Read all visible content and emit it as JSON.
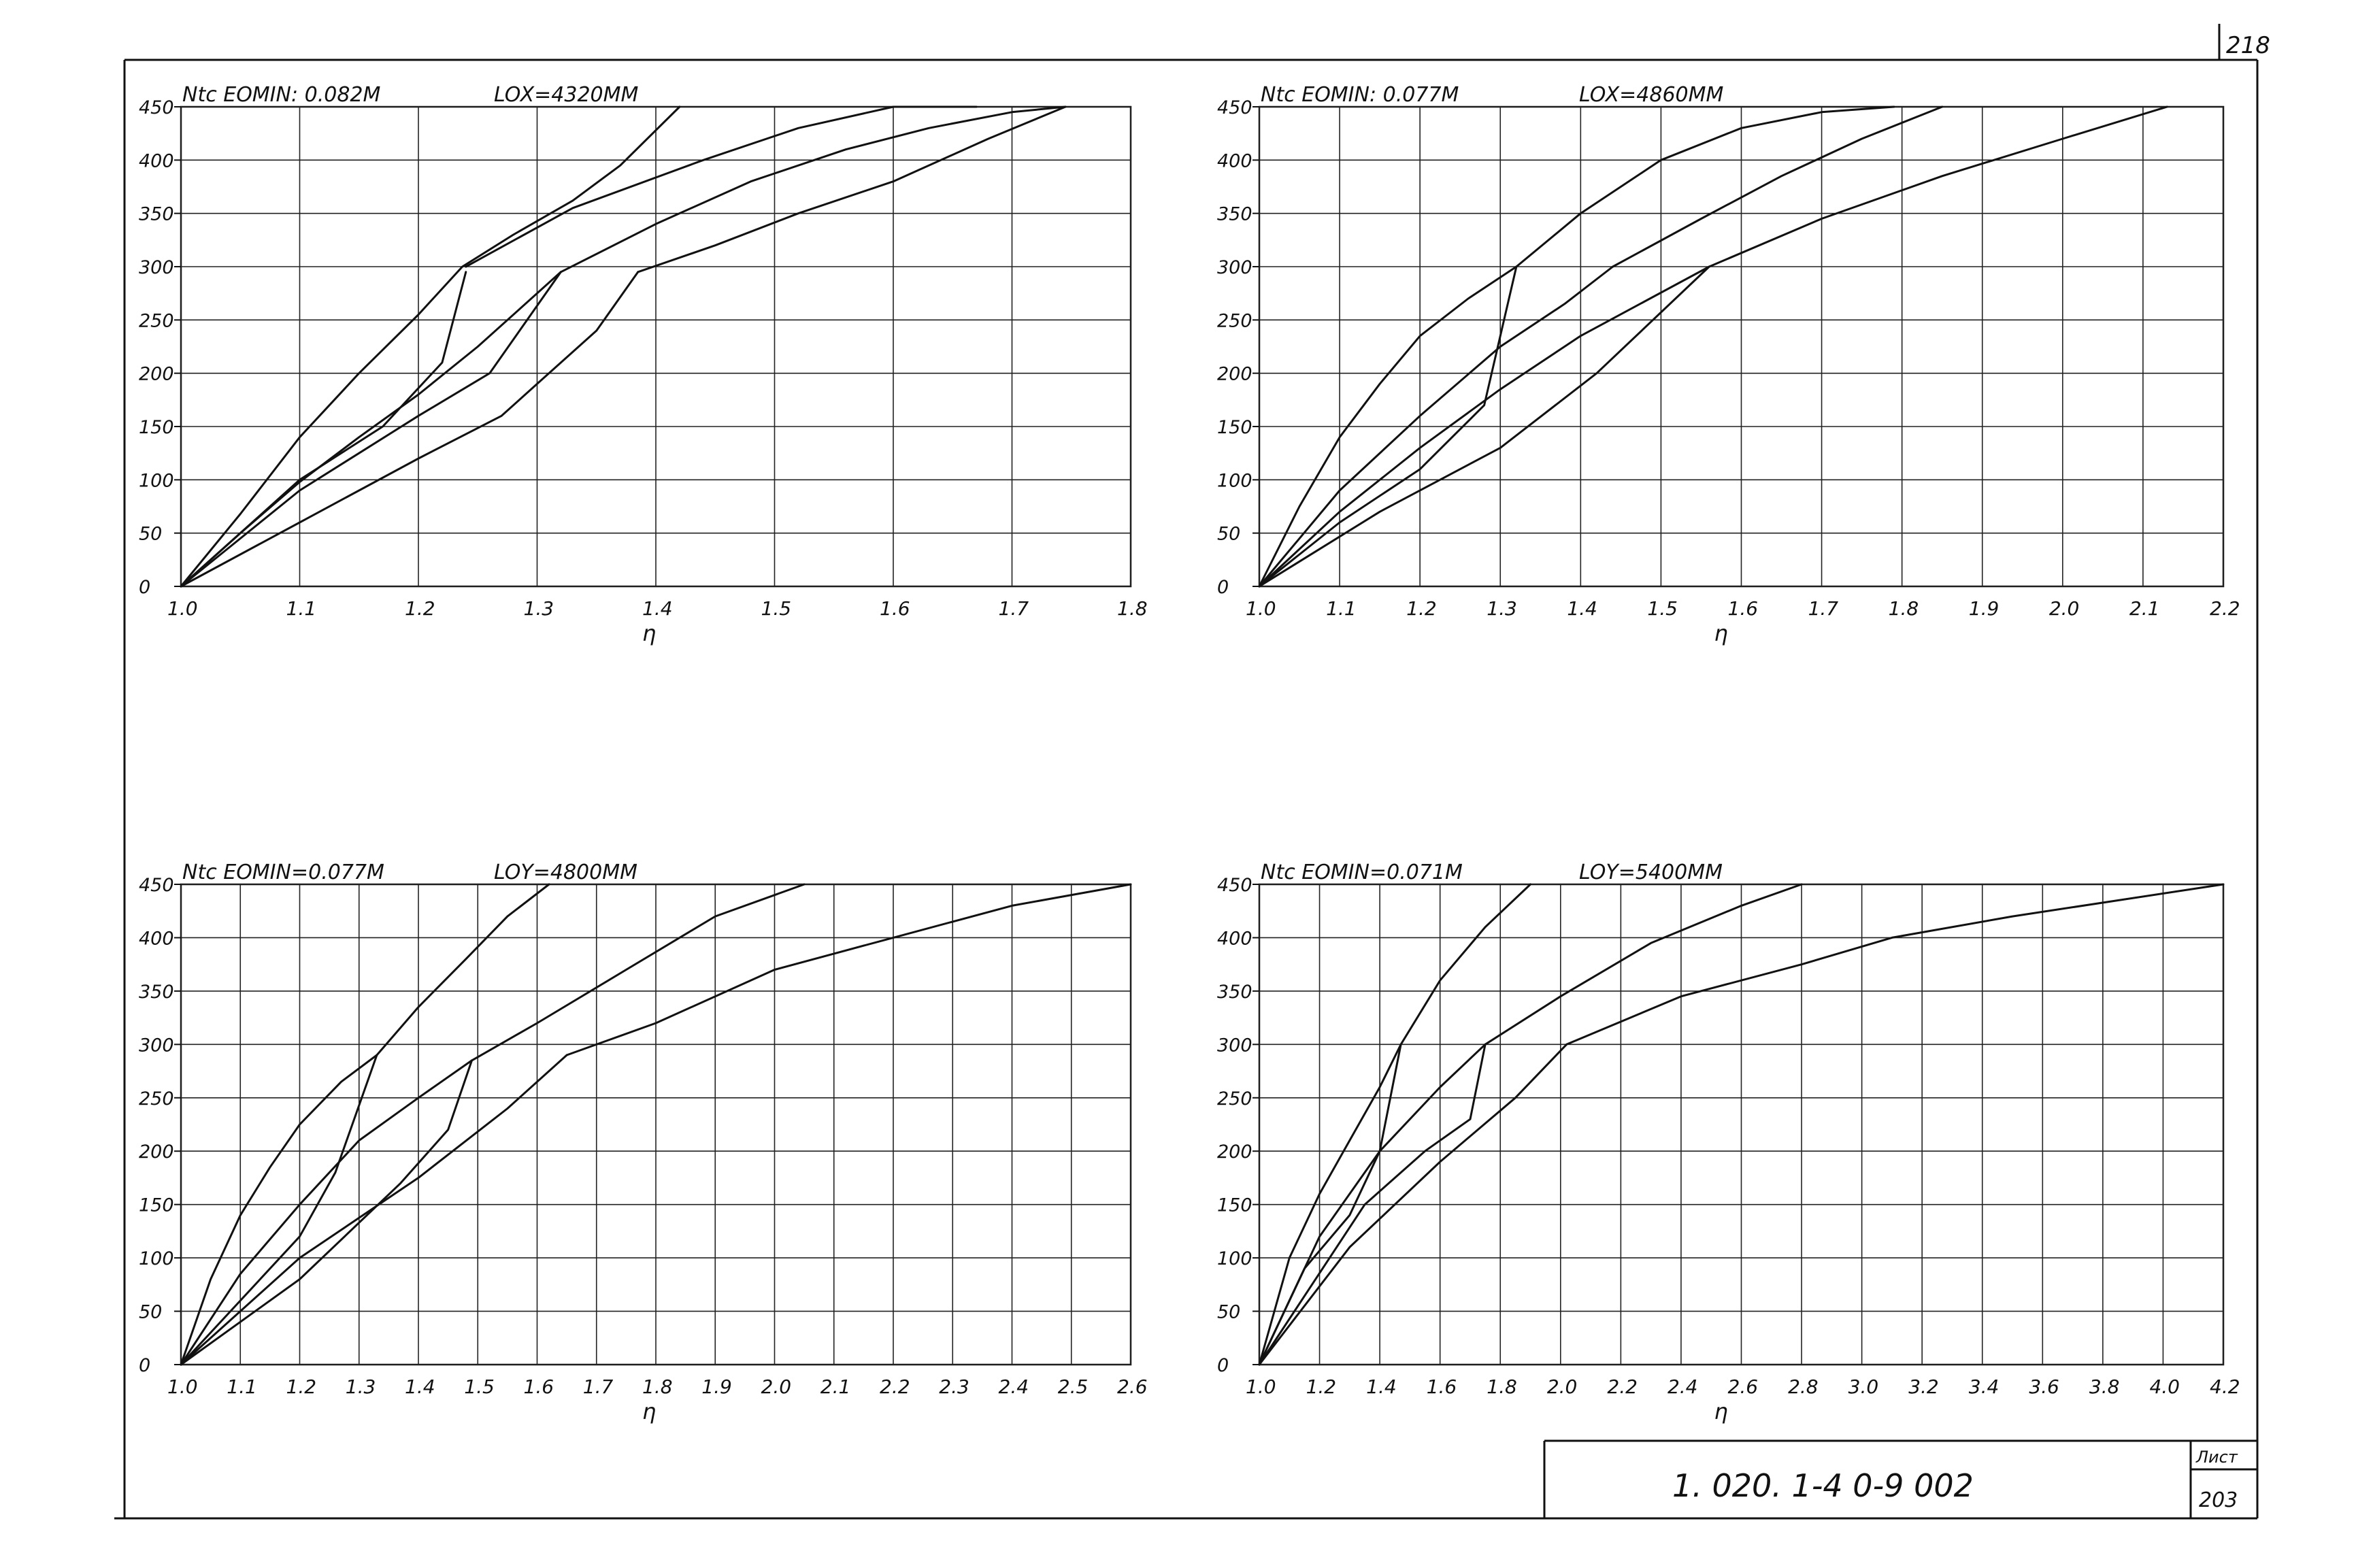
{
  "sheet": {
    "corner": "218",
    "code": "1. 020. 1-4   0-9    002",
    "list_label": "Лист",
    "list_num": "203"
  },
  "chart_data": [
    {
      "type": "line",
      "title": "Ntc  EOMIN: 0.082M",
      "subtitle": "LOX=4320MM",
      "xlabel": "η",
      "ylabel": "",
      "xlim": [
        1.0,
        1.8
      ],
      "ylim": [
        0,
        450
      ],
      "xticks": [
        "1.0",
        "1.1",
        "1.2",
        "1.3",
        "1.4",
        "1.5",
        "1.6",
        "1.7",
        "1.8"
      ],
      "yticks": [
        "0",
        "50",
        "100",
        "150",
        "200",
        "250",
        "300",
        "350",
        "400",
        "450"
      ],
      "grid": true,
      "series": [
        {
          "x": [
            1.0,
            1.05,
            1.1,
            1.15,
            1.2,
            1.237,
            1.28,
            1.33,
            1.37,
            1.42
          ],
          "y": [
            0,
            68,
            140,
            200,
            255,
            300,
            330,
            362,
            395,
            450
          ]
        },
        {
          "x": [
            1.24,
            1.33,
            1.44,
            1.52,
            1.6,
            1.67
          ],
          "y": [
            300,
            355,
            400,
            430,
            450,
            450
          ]
        },
        {
          "x": [
            1.0,
            1.05,
            1.1,
            1.15,
            1.2,
            1.25,
            1.32
          ],
          "y": [
            0,
            50,
            98,
            140,
            180,
            225,
            295
          ]
        },
        {
          "x": [
            1.0,
            1.05,
            1.1,
            1.15,
            1.2,
            1.26,
            1.32
          ],
          "y": [
            0,
            45,
            90,
            125,
            160,
            200,
            295
          ]
        },
        {
          "x": [
            1.32,
            1.4,
            1.48,
            1.56,
            1.63,
            1.7,
            1.745
          ],
          "y": [
            295,
            340,
            380,
            410,
            430,
            445,
            450
          ]
        },
        {
          "x": [
            1.0,
            1.1,
            1.2,
            1.27,
            1.3,
            1.35,
            1.385
          ],
          "y": [
            0,
            60,
            120,
            160,
            190,
            240,
            295
          ]
        },
        {
          "x": [
            1.385,
            1.45,
            1.52,
            1.6,
            1.68,
            1.745
          ],
          "y": [
            295,
            320,
            350,
            380,
            420,
            450
          ]
        },
        {
          "x": [
            1.0,
            1.1,
            1.17,
            1.22,
            1.24
          ],
          "y": [
            0,
            100,
            150,
            210,
            295
          ]
        }
      ]
    },
    {
      "type": "line",
      "title": "Ntc  EOMIN: 0.077M",
      "subtitle": "LOX=4860MM",
      "xlabel": "η",
      "ylabel": "",
      "xlim": [
        1.0,
        2.2
      ],
      "ylim": [
        0,
        450
      ],
      "xticks": [
        "1.0",
        "1.1",
        "1.2",
        "1.3",
        "1.4",
        "1.5",
        "1.6",
        "1.7",
        "1.8",
        "1.9",
        "2.0",
        "2.1",
        "2.2"
      ],
      "yticks": [
        "0",
        "50",
        "100",
        "150",
        "200",
        "250",
        "300",
        "350",
        "400",
        "450"
      ],
      "grid": true,
      "series": [
        {
          "x": [
            1.0,
            1.05,
            1.1,
            1.15,
            1.2,
            1.26,
            1.32
          ],
          "y": [
            0,
            75,
            140,
            190,
            235,
            270,
            300
          ]
        },
        {
          "x": [
            1.32,
            1.4,
            1.5,
            1.6,
            1.7,
            1.79
          ],
          "y": [
            300,
            350,
            400,
            430,
            445,
            450
          ]
        },
        {
          "x": [
            1.0,
            1.1,
            1.2,
            1.3,
            1.38,
            1.44
          ],
          "y": [
            0,
            90,
            160,
            225,
            265,
            300
          ]
        },
        {
          "x": [
            1.44,
            1.55,
            1.65,
            1.75,
            1.85
          ],
          "y": [
            300,
            345,
            385,
            420,
            450
          ]
        },
        {
          "x": [
            1.0,
            1.1,
            1.2,
            1.3,
            1.4,
            1.56
          ],
          "y": [
            0,
            70,
            130,
            185,
            235,
            300
          ]
        },
        {
          "x": [
            1.56,
            1.7,
            1.85,
            2.0,
            2.13
          ],
          "y": [
            300,
            345,
            385,
            420,
            450
          ]
        },
        {
          "x": [
            1.0,
            1.1,
            1.2,
            1.28,
            1.32
          ],
          "y": [
            0,
            60,
            110,
            170,
            300
          ]
        },
        {
          "x": [
            1.0,
            1.15,
            1.3,
            1.42,
            1.56
          ],
          "y": [
            0,
            70,
            130,
            200,
            300
          ]
        }
      ]
    },
    {
      "type": "line",
      "title": "Ntc  EOMIN=0.077M",
      "subtitle": "LOY=4800MM",
      "xlabel": "η",
      "ylabel": "",
      "xlim": [
        1.0,
        2.6
      ],
      "ylim": [
        0,
        450
      ],
      "xticks": [
        "1.0",
        "1.1",
        "1.2",
        "1.3",
        "1.4",
        "1.5",
        "1.6",
        "1.7",
        "1.8",
        "1.9",
        "2.0",
        "2.1",
        "2.2",
        "2.3",
        "2.4",
        "2.5",
        "2.6"
      ],
      "yticks": [
        "0",
        "50",
        "100",
        "150",
        "200",
        "250",
        "300",
        "350",
        "400",
        "450"
      ],
      "grid": true,
      "series": [
        {
          "x": [
            1.0,
            1.05,
            1.1,
            1.15,
            1.2,
            1.27,
            1.33
          ],
          "y": [
            0,
            80,
            140,
            185,
            225,
            265,
            290
          ]
        },
        {
          "x": [
            1.33,
            1.4,
            1.48,
            1.55,
            1.62
          ],
          "y": [
            290,
            335,
            380,
            420,
            450
          ]
        },
        {
          "x": [
            1.0,
            1.1,
            1.2,
            1.3,
            1.4,
            1.49
          ],
          "y": [
            0,
            85,
            150,
            210,
            250,
            285
          ]
        },
        {
          "x": [
            1.49,
            1.6,
            1.75,
            1.9,
            2.05
          ],
          "y": [
            285,
            320,
            370,
            420,
            450
          ]
        },
        {
          "x": [
            1.0,
            1.2,
            1.4,
            1.55,
            1.65
          ],
          "y": [
            0,
            100,
            175,
            240,
            290
          ]
        },
        {
          "x": [
            1.65,
            1.8,
            2.0,
            2.2,
            2.4,
            2.6
          ],
          "y": [
            290,
            320,
            370,
            400,
            430,
            450
          ]
        },
        {
          "x": [
            1.0,
            1.1,
            1.2,
            1.26,
            1.33
          ],
          "y": [
            0,
            60,
            120,
            180,
            290
          ]
        },
        {
          "x": [
            1.0,
            1.2,
            1.37,
            1.45,
            1.49
          ],
          "y": [
            0,
            80,
            170,
            220,
            285
          ]
        }
      ]
    },
    {
      "type": "line",
      "title": "Ntc  EOMIN=0.071M",
      "subtitle": "LOY=5400MM",
      "xlabel": "η",
      "ylabel": "",
      "xlim": [
        1.0,
        4.2
      ],
      "ylim": [
        0,
        450
      ],
      "xticks": [
        "1.0",
        "1.2",
        "1.4",
        "1.6",
        "1.8",
        "2.0",
        "2.2",
        "2.4",
        "2.6",
        "2.8",
        "3.0",
        "3.2",
        "3.4",
        "3.6",
        "3.8",
        "4.0",
        "4.2"
      ],
      "yticks": [
        "0",
        "50",
        "100",
        "150",
        "200",
        "250",
        "300",
        "350",
        "400",
        "450"
      ],
      "grid": true,
      "series": [
        {
          "x": [
            1.0,
            1.1,
            1.2,
            1.3,
            1.4,
            1.47
          ],
          "y": [
            0,
            100,
            160,
            210,
            260,
            300
          ]
        },
        {
          "x": [
            1.47,
            1.6,
            1.75,
            1.9
          ],
          "y": [
            300,
            360,
            410,
            450
          ]
        },
        {
          "x": [
            1.0,
            1.2,
            1.4,
            1.6,
            1.75
          ],
          "y": [
            0,
            120,
            200,
            260,
            300
          ]
        },
        {
          "x": [
            1.75,
            2.0,
            2.3,
            2.6,
            2.8
          ],
          "y": [
            300,
            345,
            395,
            430,
            450
          ]
        },
        {
          "x": [
            1.0,
            1.3,
            1.6,
            1.85,
            2.02
          ],
          "y": [
            0,
            110,
            190,
            250,
            300
          ]
        },
        {
          "x": [
            2.02,
            2.4,
            2.8,
            3.1,
            3.5,
            4.2
          ],
          "y": [
            300,
            345,
            375,
            400,
            420,
            450
          ]
        },
        {
          "x": [
            1.0,
            1.15,
            1.3,
            1.4,
            1.47
          ],
          "y": [
            0,
            90,
            140,
            200,
            300
          ]
        },
        {
          "x": [
            1.0,
            1.35,
            1.55,
            1.7,
            1.75
          ],
          "y": [
            0,
            150,
            200,
            230,
            300
          ]
        }
      ]
    }
  ]
}
